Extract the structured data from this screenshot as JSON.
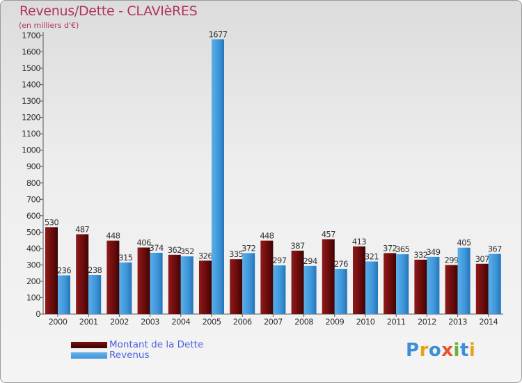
{
  "title": "Revenus/Dette - CLAVIèRES",
  "subtitle": "(en milliers d'€)",
  "chart_data": {
    "type": "bar",
    "title": "Revenus/Dette - CLAVIèRES",
    "ylabel": "(en milliers d'€)",
    "xlabel": "",
    "categories": [
      "2000",
      "2001",
      "2002",
      "2003",
      "2004",
      "2005",
      "2006",
      "2007",
      "2008",
      "2009",
      "2010",
      "2011",
      "2012",
      "2013",
      "2014"
    ],
    "series": [
      {
        "name": "Montant de la Dette",
        "color": "#7a1010",
        "values": [
          530,
          487,
          448,
          406,
          362,
          326,
          335,
          448,
          387,
          457,
          413,
          372,
          332,
          299,
          307
        ]
      },
      {
        "name": "Revenus",
        "color": "#3d95d8",
        "values": [
          236,
          238,
          315,
          374,
          352,
          1677,
          372,
          297,
          294,
          276,
          321,
          365,
          349,
          405,
          367
        ]
      }
    ],
    "ylim": [
      0,
      1700
    ],
    "yticks": [
      0,
      100,
      200,
      300,
      400,
      500,
      600,
      700,
      800,
      900,
      1000,
      1100,
      1200,
      1300,
      1400,
      1500,
      1600,
      1700
    ],
    "grid": false,
    "legend_position": "bottom-left"
  },
  "legend": {
    "items": [
      {
        "label": "Montant de la Dette",
        "color": "#7a1010"
      },
      {
        "label": "Revenus",
        "color": "#3d95d8"
      }
    ]
  },
  "logo": {
    "letters": [
      {
        "ch": "P",
        "color": "#3c8fd6"
      },
      {
        "ch": "r",
        "color": "#e8a21a"
      },
      {
        "ch": "o",
        "color": "#3c8fd6"
      },
      {
        "ch": "x",
        "color": "#e8542a"
      },
      {
        "ch": "i",
        "color": "#6ab23c"
      },
      {
        "ch": "t",
        "color": "#3c8fd6"
      },
      {
        "ch": "i",
        "color": "#e8a21a"
      }
    ]
  }
}
